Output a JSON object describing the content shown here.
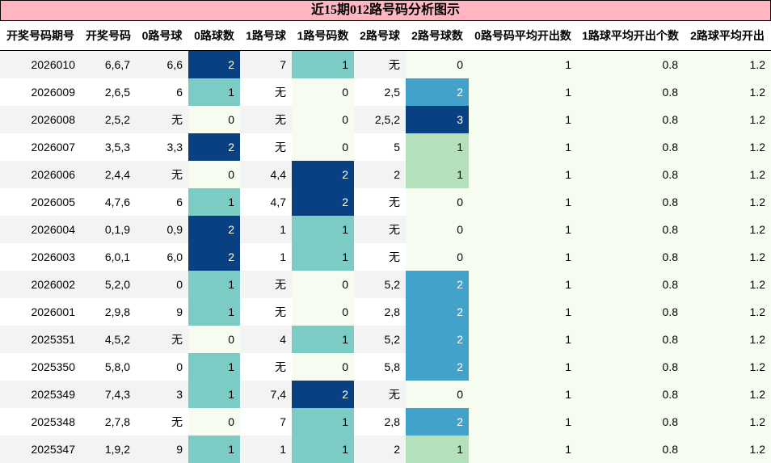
{
  "title": "近15期012路号码分析图示",
  "columns": [
    "开奖号码期号",
    "开奖号码",
    "0路号球",
    "0路球数",
    "1路号球",
    "1路号码数",
    "2路号球",
    "2路号球数",
    "0路号码平均开出数",
    "1路球平均开出个数",
    "2路球平均开出"
  ],
  "colors": {
    "header_bg": "#ffb6c1",
    "row_stripe": "#f3f3f3",
    "c0": "#f7fcf0",
    "c1": "#7bccc4",
    "c2": "#084081",
    "c2_route2_1": "#b4e1bb",
    "c2_route2_2": "#43a2ca",
    "c2_route2_3": "#084081"
  },
  "rows": [
    {
      "period": "2026010",
      "numbers": "6,6,7",
      "r0_balls": "6,6",
      "r0_count": "2",
      "r1_balls": "7",
      "r1_count": "1",
      "r2_balls": "无",
      "r2_count": "0",
      "avg0": "1",
      "avg1": "0.8",
      "avg2": "1.2"
    },
    {
      "period": "2026009",
      "numbers": "2,6,5",
      "r0_balls": "6",
      "r0_count": "1",
      "r1_balls": "无",
      "r1_count": "0",
      "r2_balls": "2,5",
      "r2_count": "2",
      "avg0": "1",
      "avg1": "0.8",
      "avg2": "1.2"
    },
    {
      "period": "2026008",
      "numbers": "2,5,2",
      "r0_balls": "无",
      "r0_count": "0",
      "r1_balls": "无",
      "r1_count": "0",
      "r2_balls": "2,5,2",
      "r2_count": "3",
      "avg0": "1",
      "avg1": "0.8",
      "avg2": "1.2"
    },
    {
      "period": "2026007",
      "numbers": "3,5,3",
      "r0_balls": "3,3",
      "r0_count": "2",
      "r1_balls": "无",
      "r1_count": "0",
      "r2_balls": "5",
      "r2_count": "1",
      "avg0": "1",
      "avg1": "0.8",
      "avg2": "1.2"
    },
    {
      "period": "2026006",
      "numbers": "2,4,4",
      "r0_balls": "无",
      "r0_count": "0",
      "r1_balls": "4,4",
      "r1_count": "2",
      "r2_balls": "2",
      "r2_count": "1",
      "avg0": "1",
      "avg1": "0.8",
      "avg2": "1.2"
    },
    {
      "period": "2026005",
      "numbers": "4,7,6",
      "r0_balls": "6",
      "r0_count": "1",
      "r1_balls": "4,7",
      "r1_count": "2",
      "r2_balls": "无",
      "r2_count": "0",
      "avg0": "1",
      "avg1": "0.8",
      "avg2": "1.2"
    },
    {
      "period": "2026004",
      "numbers": "0,1,9",
      "r0_balls": "0,9",
      "r0_count": "2",
      "r1_balls": "1",
      "r1_count": "1",
      "r2_balls": "无",
      "r2_count": "0",
      "avg0": "1",
      "avg1": "0.8",
      "avg2": "1.2"
    },
    {
      "period": "2026003",
      "numbers": "6,0,1",
      "r0_balls": "6,0",
      "r0_count": "2",
      "r1_balls": "1",
      "r1_count": "1",
      "r2_balls": "无",
      "r2_count": "0",
      "avg0": "1",
      "avg1": "0.8",
      "avg2": "1.2"
    },
    {
      "period": "2026002",
      "numbers": "5,2,0",
      "r0_balls": "0",
      "r0_count": "1",
      "r1_balls": "无",
      "r1_count": "0",
      "r2_balls": "5,2",
      "r2_count": "2",
      "avg0": "1",
      "avg1": "0.8",
      "avg2": "1.2"
    },
    {
      "period": "2026001",
      "numbers": "2,9,8",
      "r0_balls": "9",
      "r0_count": "1",
      "r1_balls": "无",
      "r1_count": "0",
      "r2_balls": "2,8",
      "r2_count": "2",
      "avg0": "1",
      "avg1": "0.8",
      "avg2": "1.2"
    },
    {
      "period": "2025351",
      "numbers": "4,5,2",
      "r0_balls": "无",
      "r0_count": "0",
      "r1_balls": "4",
      "r1_count": "1",
      "r2_balls": "5,2",
      "r2_count": "2",
      "avg0": "1",
      "avg1": "0.8",
      "avg2": "1.2"
    },
    {
      "period": "2025350",
      "numbers": "5,8,0",
      "r0_balls": "0",
      "r0_count": "1",
      "r1_balls": "无",
      "r1_count": "0",
      "r2_balls": "5,8",
      "r2_count": "2",
      "avg0": "1",
      "avg1": "0.8",
      "avg2": "1.2"
    },
    {
      "period": "2025349",
      "numbers": "7,4,3",
      "r0_balls": "3",
      "r0_count": "1",
      "r1_balls": "7,4",
      "r1_count": "2",
      "r2_balls": "无",
      "r2_count": "0",
      "avg0": "1",
      "avg1": "0.8",
      "avg2": "1.2"
    },
    {
      "period": "2025348",
      "numbers": "2,7,8",
      "r0_balls": "无",
      "r0_count": "0",
      "r1_balls": "7",
      "r1_count": "1",
      "r2_balls": "2,8",
      "r2_count": "2",
      "avg0": "1",
      "avg1": "0.8",
      "avg2": "1.2"
    },
    {
      "period": "2025347",
      "numbers": "1,9,2",
      "r0_balls": "9",
      "r0_count": "1",
      "r1_balls": "1",
      "r1_count": "1",
      "r2_balls": "2",
      "r2_count": "1",
      "avg0": "1",
      "avg1": "0.8",
      "avg2": "1.2"
    }
  ]
}
